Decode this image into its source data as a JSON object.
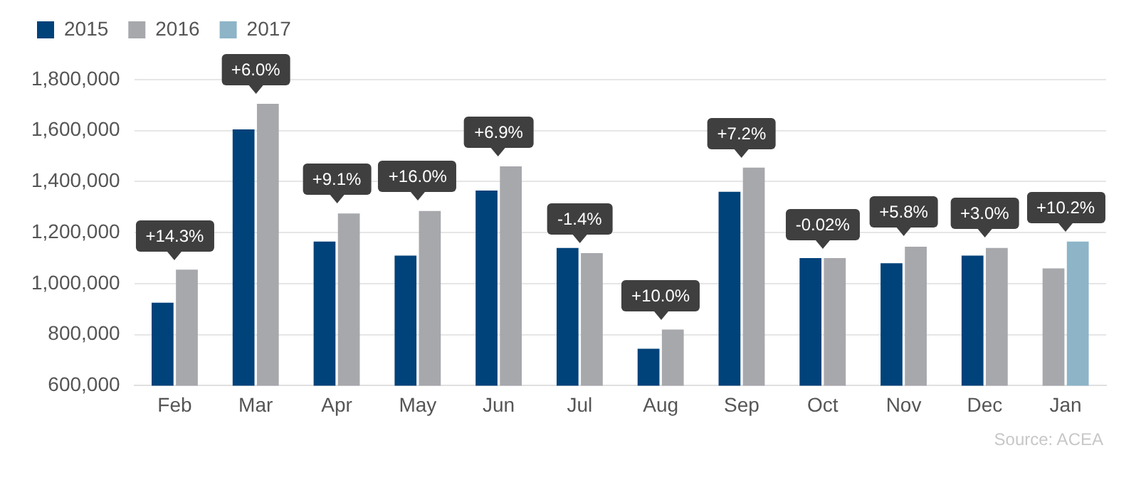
{
  "chart_data": {
    "type": "bar",
    "categories": [
      "Feb",
      "Mar",
      "Apr",
      "May",
      "Jun",
      "Jul",
      "Aug",
      "Sep",
      "Oct",
      "Nov",
      "Dec",
      "Jan"
    ],
    "series": [
      {
        "name": "2015",
        "color": "#00427a",
        "values": [
          925000,
          1605000,
          1165000,
          1110000,
          1365000,
          1140000,
          745000,
          1360000,
          1100000,
          1080000,
          1110000,
          null
        ]
      },
      {
        "name": "2016",
        "color": "#a7a8ac",
        "values": [
          1055000,
          1705000,
          1275000,
          1285000,
          1460000,
          1120000,
          820000,
          1455000,
          1100000,
          1145000,
          1140000,
          1060000
        ]
      },
      {
        "name": "2017",
        "color": "#8db4c7",
        "values": [
          null,
          null,
          null,
          null,
          null,
          null,
          null,
          null,
          null,
          null,
          null,
          1165000
        ]
      }
    ],
    "ylim": [
      600000,
      1800000
    ],
    "yticks": [
      {
        "value": 600000,
        "label": "600,000"
      },
      {
        "value": 800000,
        "label": "800,000"
      },
      {
        "value": 1000000,
        "label": "1,000,000"
      },
      {
        "value": 1200000,
        "label": "1,200,000"
      },
      {
        "value": 1400000,
        "label": "1,400,000"
      },
      {
        "value": 1600000,
        "label": "1,600,000"
      },
      {
        "value": 1800000,
        "label": "1,800,000"
      }
    ],
    "grid": "y",
    "legend": "top left",
    "annotations": [
      {
        "text": "+14.3%",
        "x": "Feb",
        "y": 1055000
      },
      {
        "text": "+6.0%",
        "x": "Mar",
        "y": 1705000
      },
      {
        "text": "+9.1%",
        "x": "Apr",
        "y": 1275000
      },
      {
        "text": "+16.0%",
        "x": "May",
        "y": 1285000
      },
      {
        "text": "+6.9%",
        "x": "Jun",
        "y": 1460000
      },
      {
        "text": "-1.4%",
        "x": "Jul",
        "y": 1120000
      },
      {
        "text": "+10.0%",
        "x": "Aug",
        "y": 820000
      },
      {
        "text": "+7.2%",
        "x": "Sep",
        "y": 1455000
      },
      {
        "text": "-0.02%",
        "x": "Oct",
        "y": 1100000
      },
      {
        "text": "+5.8%",
        "x": "Nov",
        "y": 1145000
      },
      {
        "text": "+3.0%",
        "x": "Dec",
        "y": 1140000
      },
      {
        "text": "+10.2%",
        "x": "Jan",
        "y": 1165000
      },
      "Source: ACEA"
    ]
  }
}
